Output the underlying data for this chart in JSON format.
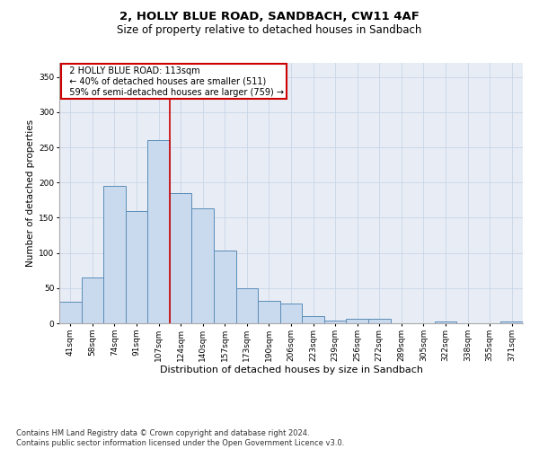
{
  "title1": "2, HOLLY BLUE ROAD, SANDBACH, CW11 4AF",
  "title2": "Size of property relative to detached houses in Sandbach",
  "xlabel": "Distribution of detached houses by size in Sandbach",
  "ylabel": "Number of detached properties",
  "bar_labels": [
    "41sqm",
    "58sqm",
    "74sqm",
    "91sqm",
    "107sqm",
    "124sqm",
    "140sqm",
    "157sqm",
    "173sqm",
    "190sqm",
    "206sqm",
    "223sqm",
    "239sqm",
    "256sqm",
    "272sqm",
    "289sqm",
    "305sqm",
    "322sqm",
    "338sqm",
    "355sqm",
    "371sqm"
  ],
  "bar_values": [
    30,
    65,
    195,
    160,
    260,
    185,
    163,
    103,
    50,
    32,
    28,
    10,
    4,
    6,
    6,
    0,
    0,
    2,
    0,
    0,
    2
  ],
  "bar_color": "#c9d9ee",
  "bar_edge_color": "#5b8db8",
  "bar_edge_width": 0.7,
  "property_line_x": 4.5,
  "property_line_color": "#cc0000",
  "annotation_line1": "  2 HOLLY BLUE ROAD: 113sqm",
  "annotation_line2": "  ← 40% of detached houses are smaller (511)",
  "annotation_line3": "  59% of semi-detached houses are larger (759) →",
  "annotation_box_color": "#cc0000",
  "ylim": [
    0,
    370
  ],
  "yticks": [
    0,
    50,
    100,
    150,
    200,
    250,
    300,
    350
  ],
  "grid_color": "#c8d4e8",
  "bg_color": "#e8edf5",
  "footer": "Contains HM Land Registry data © Crown copyright and database right 2024.\nContains public sector information licensed under the Open Government Licence v3.0.",
  "title1_fontsize": 9.5,
  "title2_fontsize": 8.5,
  "xlabel_fontsize": 8,
  "ylabel_fontsize": 7.5,
  "tick_fontsize": 6.5,
  "annotation_fontsize": 7,
  "footer_fontsize": 6
}
